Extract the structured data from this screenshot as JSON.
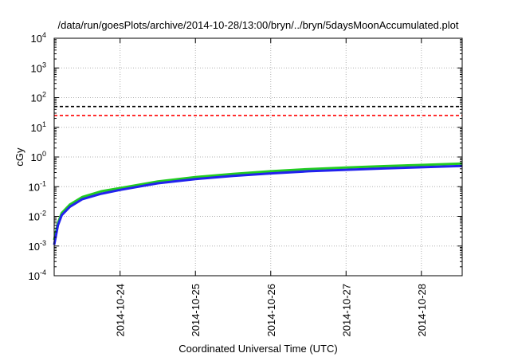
{
  "chart_data": {
    "type": "line",
    "title": "/data/run/goesPlots/archive/2014-10-28/13:00/bryn/../bryn/5daysMoonAccumulated.plot",
    "xlabel": "Coordinated Universal Time (UTC)",
    "ylabel": "cGy",
    "yscale": "log",
    "ylim": [
      0.0001,
      10000
    ],
    "xlim": [
      "2014-10-23T03:00",
      "2014-10-28T13:00"
    ],
    "x_ticks": [
      "2014-10-24",
      "2014-10-25",
      "2014-10-26",
      "2014-10-27",
      "2014-10-28"
    ],
    "y_ticks": [
      {
        "base": "10",
        "exp": "-4",
        "value": 0.0001
      },
      {
        "base": "10",
        "exp": "-3",
        "value": 0.001
      },
      {
        "base": "10",
        "exp": "-2",
        "value": 0.01
      },
      {
        "base": "10",
        "exp": "-1",
        "value": 0.1
      },
      {
        "base": "10",
        "exp": "0",
        "value": 1
      },
      {
        "base": "10",
        "exp": "1",
        "value": 10
      },
      {
        "base": "10",
        "exp": "2",
        "value": 100
      },
      {
        "base": "10",
        "exp": "3",
        "value": 1000
      },
      {
        "base": "10",
        "exp": "4",
        "value": 10000
      }
    ],
    "grid": true,
    "legend": "none",
    "reference_lines": [
      {
        "y": 50,
        "color": "#000000",
        "style": "dashed"
      },
      {
        "y": 25,
        "color": "#ff0000",
        "style": "dashed"
      }
    ],
    "series": [
      {
        "color": "#22cc22",
        "x": [
          "2014-10-23T03:00",
          "2014-10-23T04:12",
          "2014-10-23T05:24",
          "2014-10-23T08:00",
          "2014-10-23T12:00",
          "2014-10-23T18:00",
          "2014-10-24T00:00",
          "2014-10-24T12:00",
          "2014-10-25T00:00",
          "2014-10-25T12:00",
          "2014-10-26T00:00",
          "2014-10-26T12:00",
          "2014-10-27T00:00",
          "2014-10-27T12:00",
          "2014-10-28T00:00",
          "2014-10-28T13:00"
        ],
        "values": [
          0.0016,
          0.006,
          0.013,
          0.025,
          0.045,
          0.07,
          0.09,
          0.15,
          0.21,
          0.27,
          0.33,
          0.39,
          0.44,
          0.49,
          0.54,
          0.6
        ]
      },
      {
        "color": "#2222ee",
        "x": [
          "2014-10-23T03:00",
          "2014-10-23T04:12",
          "2014-10-23T05:24",
          "2014-10-23T08:00",
          "2014-10-23T12:00",
          "2014-10-23T18:00",
          "2014-10-24T00:00",
          "2014-10-24T12:00",
          "2014-10-25T00:00",
          "2014-10-25T12:00",
          "2014-10-26T00:00",
          "2014-10-26T12:00",
          "2014-10-27T00:00",
          "2014-10-27T12:00",
          "2014-10-28T00:00",
          "2014-10-28T13:00"
        ],
        "values": [
          0.0011,
          0.005,
          0.011,
          0.021,
          0.038,
          0.058,
          0.078,
          0.13,
          0.18,
          0.23,
          0.28,
          0.33,
          0.37,
          0.41,
          0.45,
          0.5
        ]
      }
    ]
  }
}
